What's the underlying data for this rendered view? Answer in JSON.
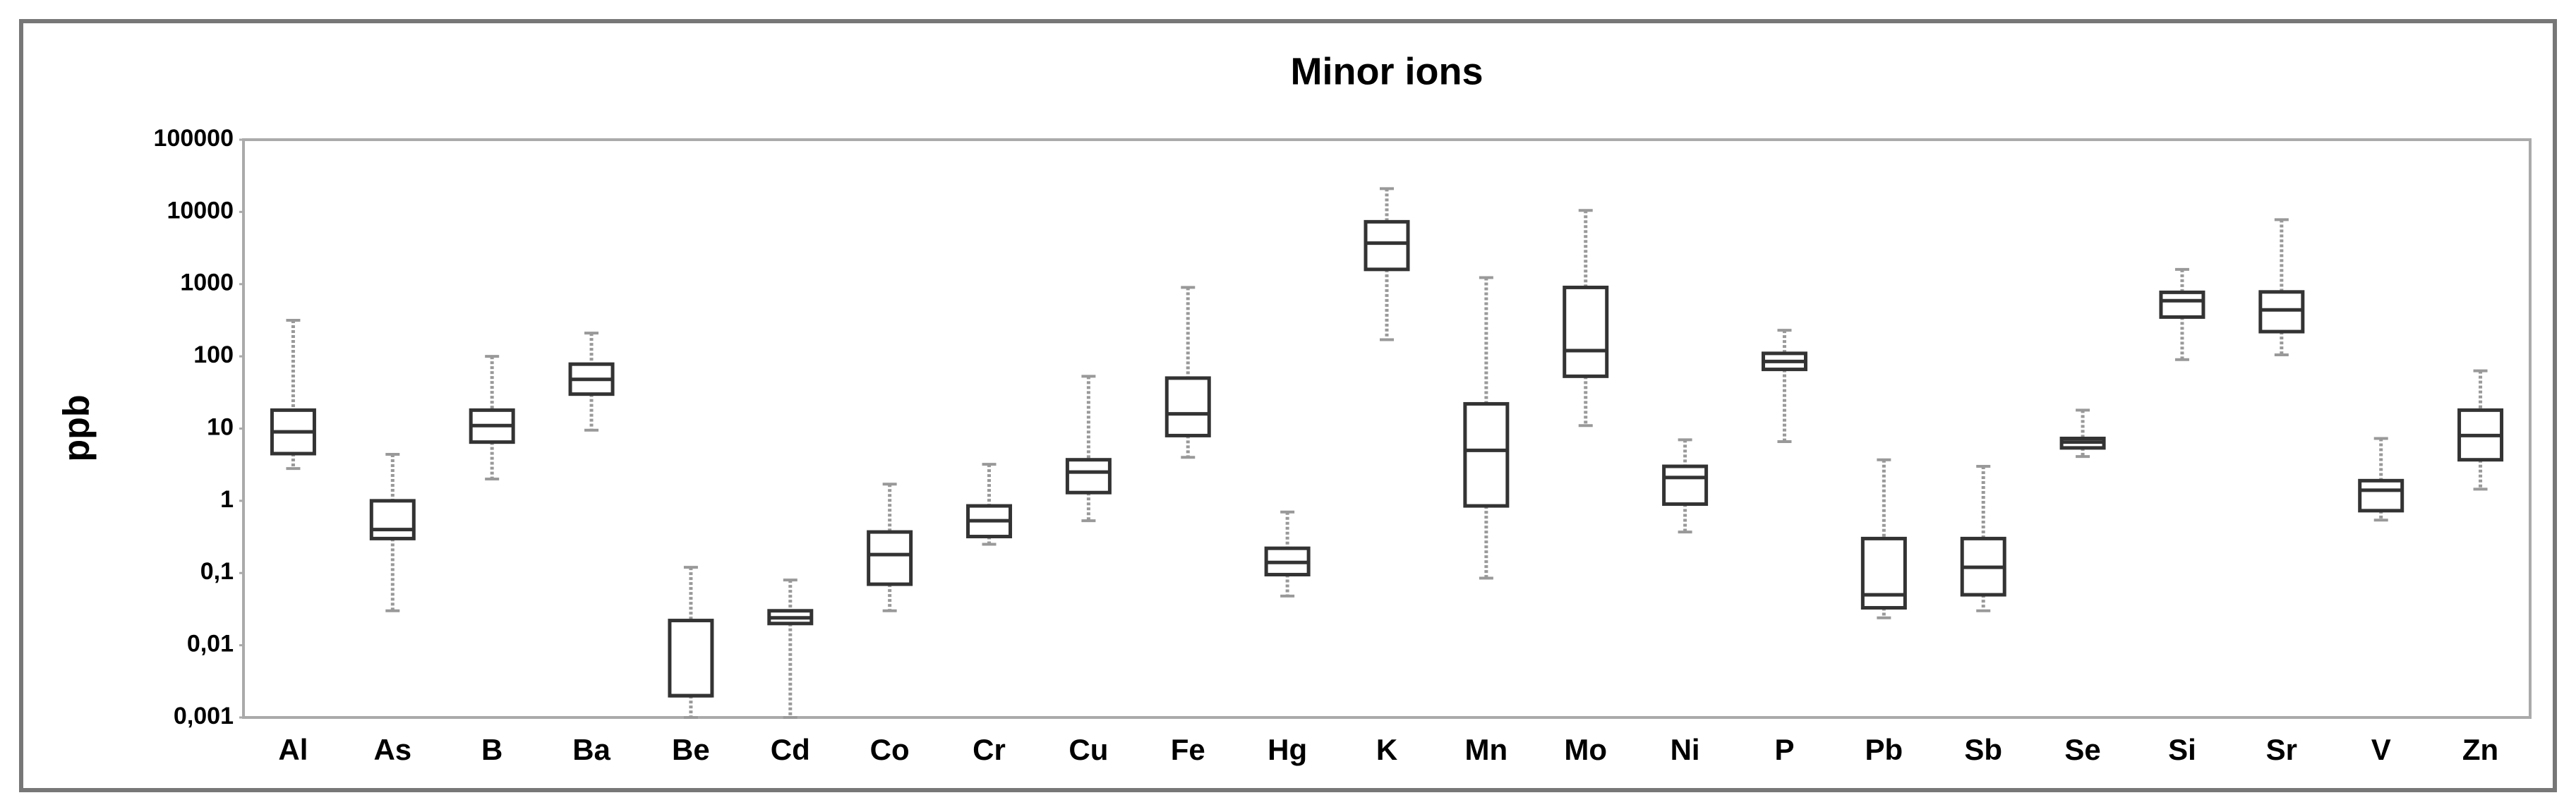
{
  "chart_data": {
    "type": "box",
    "title": "Minor ions",
    "y_label": "ppb",
    "log_scale": true,
    "color": "#333333",
    "whisker_color": "#999999",
    "categories": [
      "Al",
      "As",
      "B",
      "Ba",
      "Be",
      "Cd",
      "Co",
      "Cr",
      "Cu",
      "Fe",
      "Hg",
      "K",
      "Mn",
      "Mo",
      "Ni",
      "P",
      "Pb",
      "Sb",
      "Se",
      "Si",
      "Sr",
      "V",
      "Zn"
    ],
    "min": [
      2.8,
      0.03,
      2,
      9.5,
      0.001,
      0.001,
      0.03,
      0.25,
      0.53,
      4,
      0.048,
      170,
      0.085,
      11,
      0.37,
      6.6,
      0.024,
      0.03,
      4.1,
      90,
      105,
      0.54,
      1.45
    ],
    "q1": [
      4.5,
      0.3,
      6.5,
      30,
      0.002,
      0.02,
      0.07,
      0.32,
      1.3,
      8,
      0.095,
      1600,
      0.85,
      53,
      0.9,
      66,
      0.033,
      0.05,
      5.4,
      350,
      220,
      0.73,
      3.7
    ],
    "median": [
      9,
      0.4,
      11,
      48,
      0.002,
      0.024,
      0.18,
      0.53,
      2.5,
      16,
      0.14,
      3700,
      5,
      120,
      2.1,
      85,
      0.05,
      0.12,
      6.5,
      590,
      440,
      1.4,
      8
    ],
    "q3": [
      18,
      1,
      18,
      78,
      0.022,
      0.03,
      0.37,
      0.85,
      3.7,
      50,
      0.22,
      7300,
      22,
      900,
      3,
      110,
      0.3,
      0.3,
      7.3,
      770,
      780,
      1.9,
      18
    ],
    "max": [
      316,
      4.4,
      100,
      210,
      0.12,
      0.08,
      1.7,
      3.2,
      53,
      900,
      0.7,
      21000,
      1230,
      10500,
      7,
      230,
      3.7,
      3,
      18,
      1600,
      7800,
      7.3,
      63
    ],
    "ylim": [
      0.001,
      100000
    ],
    "yticks": [
      {
        "value": 0.001,
        "label": "0,001"
      },
      {
        "value": 0.01,
        "label": "0,01"
      },
      {
        "value": 0.1,
        "label": "0,1"
      },
      1,
      10,
      100,
      1000,
      10000,
      100000
    ],
    "grid": false
  }
}
